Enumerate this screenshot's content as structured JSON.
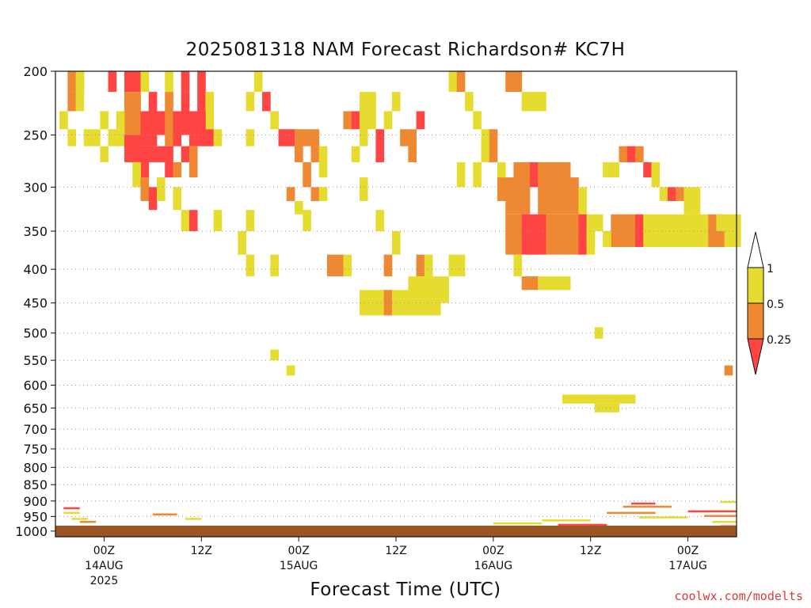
{
  "title": "2025081318 NAM Forecast Richardson# KC7H",
  "x_axis_title": "Forecast Time (UTC)",
  "watermark": "coolwx.com/modelts",
  "colors": {
    "lt_0_25": "#ff4444",
    "0_25_to_0_5": "#ee8833",
    "0_5_to_1": "#e6dc30",
    "ground": "#9b5523",
    "gridline": "#999999"
  },
  "colorbar": {
    "labels": [
      "1",
      "0.5",
      "0.25"
    ]
  },
  "chart_data": {
    "type": "heatmap",
    "title": "2025081318 NAM Forecast Richardson# KC7H",
    "xlabel": "Forecast Time (UTC)",
    "ylabel": "",
    "x_unit": "forecast hour from 2025-08-13 18Z",
    "x_range": [
      0,
      84
    ],
    "y_scale": "log-pressure",
    "y_range_hPa": [
      1020,
      200
    ],
    "grid": "dotted horizontal lines at labeled pressure levels",
    "y_ticks": [
      200,
      250,
      300,
      350,
      400,
      450,
      500,
      550,
      600,
      650,
      700,
      750,
      800,
      850,
      900,
      950,
      1000
    ],
    "x_ticks": [
      {
        "hour": 6,
        "label": "00Z",
        "date": "14AUG",
        "year": "2025"
      },
      {
        "hour": 18,
        "label": "12Z",
        "date": "",
        "year": ""
      },
      {
        "hour": 30,
        "label": "00Z",
        "date": "15AUG",
        "year": ""
      },
      {
        "hour": 42,
        "label": "12Z",
        "date": "",
        "year": ""
      },
      {
        "hour": 54,
        "label": "00Z",
        "date": "16AUG",
        "year": ""
      },
      {
        "hour": 66,
        "label": "12Z",
        "date": "",
        "year": ""
      },
      {
        "hour": 78,
        "label": "00Z",
        "date": "17AUG",
        "year": ""
      }
    ],
    "legend": {
      "position": "right",
      "boundaries": [
        "1",
        "0.5",
        "0.25"
      ],
      "classes": [
        {
          "range": "0.5-1",
          "color": "#e6dc30"
        },
        {
          "range": "0.25-0.5",
          "color": "#ee8833"
        },
        {
          "range": "<0.25",
          "color": "#ff4444"
        }
      ]
    },
    "cell_class_legend": {
      "1": "0.5-1",
      "2": "0.25-0.5",
      "3": "<0.25"
    },
    "cells": [
      [
        2,
        200,
        215,
        2
      ],
      [
        3,
        200,
        215,
        2
      ],
      [
        2,
        215,
        230,
        2
      ],
      [
        3,
        200,
        230,
        1
      ],
      [
        7,
        200,
        215,
        3
      ],
      [
        9,
        200,
        215,
        3
      ],
      [
        10,
        200,
        215,
        3
      ],
      [
        11,
        200,
        215,
        1
      ],
      [
        14,
        200,
        215,
        1
      ],
      [
        16,
        200,
        215,
        3
      ],
      [
        18,
        200,
        230,
        3
      ],
      [
        19,
        215,
        245,
        1
      ],
      [
        9,
        215,
        250,
        2
      ],
      [
        10,
        215,
        250,
        2
      ],
      [
        11,
        230,
        260,
        3
      ],
      [
        12,
        215,
        260,
        3
      ],
      [
        13,
        230,
        250,
        3
      ],
      [
        14,
        215,
        260,
        2
      ],
      [
        15,
        230,
        260,
        3
      ],
      [
        16,
        215,
        250,
        3
      ],
      [
        17,
        230,
        260,
        3
      ],
      [
        18,
        230,
        260,
        3
      ],
      [
        19,
        245,
        260,
        3
      ],
      [
        6,
        230,
        245,
        1
      ],
      [
        8,
        245,
        260,
        1
      ],
      [
        9,
        250,
        275,
        3
      ],
      [
        10,
        250,
        275,
        3
      ],
      [
        11,
        260,
        290,
        3
      ],
      [
        12,
        260,
        275,
        3
      ],
      [
        13,
        260,
        275,
        3
      ],
      [
        14,
        260,
        290,
        3
      ],
      [
        15,
        275,
        290,
        2
      ],
      [
        16,
        260,
        275,
        3
      ],
      [
        17,
        260,
        290,
        2
      ],
      [
        1,
        230,
        245,
        1
      ],
      [
        2,
        245,
        260,
        1
      ],
      [
        4,
        245,
        260,
        1
      ],
      [
        5,
        245,
        260,
        1
      ],
      [
        7,
        245,
        260,
        1
      ],
      [
        8,
        230,
        245,
        1
      ],
      [
        6,
        260,
        275,
        1
      ],
      [
        20,
        245,
        260,
        1
      ],
      [
        24,
        245,
        260,
        1
      ],
      [
        10,
        275,
        300,
        1
      ],
      [
        11,
        290,
        315,
        2
      ],
      [
        12,
        300,
        325,
        3
      ],
      [
        13,
        290,
        315,
        1
      ],
      [
        15,
        300,
        325,
        1
      ],
      [
        16,
        325,
        350,
        1
      ],
      [
        17,
        325,
        350,
        3
      ],
      [
        20,
        325,
        350,
        1
      ],
      [
        24,
        325,
        350,
        1
      ],
      [
        23,
        350,
        380,
        1
      ],
      [
        24,
        215,
        230,
        1
      ],
      [
        25,
        200,
        215,
        1
      ],
      [
        26,
        215,
        230,
        3
      ],
      [
        27,
        230,
        245,
        1
      ],
      [
        28,
        245,
        260,
        3
      ],
      [
        29,
        245,
        260,
        3
      ],
      [
        30,
        245,
        275,
        2
      ],
      [
        31,
        245,
        260,
        2
      ],
      [
        32,
        245,
        275,
        2
      ],
      [
        33,
        260,
        290,
        1
      ],
      [
        31,
        275,
        300,
        2
      ],
      [
        29,
        300,
        315,
        2
      ],
      [
        30,
        315,
        330,
        1
      ],
      [
        31,
        325,
        350,
        1
      ],
      [
        32,
        300,
        315,
        2
      ],
      [
        33,
        300,
        315,
        1
      ],
      [
        24,
        380,
        410,
        1
      ],
      [
        27,
        380,
        410,
        1
      ],
      [
        34,
        380,
        410,
        2
      ],
      [
        35,
        380,
        410,
        2
      ],
      [
        36,
        380,
        410,
        1
      ],
      [
        36,
        230,
        245,
        2
      ],
      [
        37,
        230,
        245,
        3
      ],
      [
        38,
        215,
        260,
        1
      ],
      [
        39,
        215,
        245,
        1
      ],
      [
        40,
        245,
        275,
        3
      ],
      [
        41,
        230,
        245,
        1
      ],
      [
        42,
        215,
        230,
        1
      ],
      [
        43,
        245,
        260,
        2
      ],
      [
        44,
        245,
        275,
        2
      ],
      [
        45,
        230,
        245,
        3
      ],
      [
        37,
        260,
        275,
        1
      ],
      [
        38,
        290,
        315,
        1
      ],
      [
        40,
        325,
        350,
        1
      ],
      [
        42,
        350,
        380,
        1
      ],
      [
        41,
        380,
        410,
        2
      ],
      [
        45,
        380,
        410,
        2
      ],
      [
        46,
        380,
        410,
        1
      ],
      [
        49,
        380,
        410,
        1
      ],
      [
        50,
        380,
        410,
        1
      ],
      [
        38,
        430,
        470,
        1
      ],
      [
        39,
        430,
        470,
        1
      ],
      [
        40,
        430,
        470,
        1
      ],
      [
        41,
        430,
        470,
        2
      ],
      [
        42,
        430,
        470,
        1
      ],
      [
        43,
        430,
        470,
        1
      ],
      [
        44,
        410,
        470,
        1
      ],
      [
        45,
        410,
        470,
        1
      ],
      [
        46,
        410,
        470,
        1
      ],
      [
        47,
        410,
        470,
        1
      ],
      [
        48,
        410,
        450,
        1
      ],
      [
        49,
        200,
        215,
        1
      ],
      [
        50,
        200,
        215,
        2
      ],
      [
        51,
        215,
        230,
        1
      ],
      [
        52,
        230,
        245,
        1
      ],
      [
        53,
        245,
        275,
        1
      ],
      [
        54,
        245,
        275,
        2
      ],
      [
        55,
        275,
        290,
        1
      ],
      [
        50,
        275,
        300,
        1
      ],
      [
        52,
        275,
        300,
        1
      ],
      [
        55,
        290,
        315,
        2
      ],
      [
        56,
        290,
        330,
        2
      ],
      [
        57,
        275,
        330,
        2
      ],
      [
        58,
        275,
        330,
        2
      ],
      [
        59,
        275,
        300,
        3
      ],
      [
        60,
        275,
        330,
        2
      ],
      [
        61,
        275,
        330,
        2
      ],
      [
        62,
        275,
        330,
        2
      ],
      [
        63,
        275,
        330,
        2
      ],
      [
        64,
        290,
        330,
        2
      ],
      [
        65,
        300,
        330,
        1
      ],
      [
        56,
        330,
        380,
        2
      ],
      [
        57,
        330,
        380,
        2
      ],
      [
        58,
        330,
        380,
        3
      ],
      [
        59,
        330,
        380,
        3
      ],
      [
        60,
        330,
        380,
        3
      ],
      [
        61,
        330,
        380,
        2
      ],
      [
        62,
        330,
        380,
        2
      ],
      [
        63,
        330,
        380,
        2
      ],
      [
        64,
        330,
        380,
        2
      ],
      [
        65,
        330,
        380,
        3
      ],
      [
        66,
        330,
        380,
        1
      ],
      [
        57,
        380,
        410,
        1
      ],
      [
        58,
        410,
        430,
        2
      ],
      [
        59,
        410,
        430,
        2
      ],
      [
        60,
        410,
        430,
        1
      ],
      [
        61,
        410,
        430,
        1
      ],
      [
        62,
        410,
        430,
        1
      ],
      [
        63,
        410,
        430,
        1
      ],
      [
        56,
        200,
        215,
        2
      ],
      [
        57,
        200,
        215,
        2
      ],
      [
        58,
        215,
        230,
        1
      ],
      [
        59,
        215,
        230,
        1
      ],
      [
        60,
        215,
        230,
        1
      ],
      [
        68,
        275,
        290,
        1
      ],
      [
        69,
        275,
        290,
        1
      ],
      [
        70,
        260,
        275,
        2
      ],
      [
        71,
        260,
        275,
        3
      ],
      [
        72,
        260,
        275,
        2
      ],
      [
        73,
        275,
        290,
        3
      ],
      [
        74,
        275,
        300,
        1
      ],
      [
        75,
        300,
        315,
        1
      ],
      [
        76,
        300,
        315,
        3
      ],
      [
        77,
        300,
        315,
        2
      ],
      [
        78,
        300,
        330,
        1
      ],
      [
        79,
        300,
        330,
        1
      ],
      [
        69,
        330,
        370,
        2
      ],
      [
        70,
        330,
        370,
        2
      ],
      [
        71,
        330,
        370,
        2
      ],
      [
        72,
        330,
        370,
        3
      ],
      [
        73,
        330,
        370,
        1
      ],
      [
        74,
        330,
        370,
        1
      ],
      [
        75,
        330,
        370,
        1
      ],
      [
        76,
        330,
        370,
        1
      ],
      [
        77,
        330,
        370,
        1
      ],
      [
        78,
        330,
        370,
        1
      ],
      [
        79,
        330,
        370,
        1
      ],
      [
        80,
        330,
        370,
        1
      ],
      [
        81,
        330,
        370,
        2
      ],
      [
        82,
        330,
        370,
        2
      ],
      [
        83,
        330,
        370,
        1
      ],
      [
        84,
        330,
        370,
        1
      ],
      [
        67,
        330,
        350,
        1
      ],
      [
        66,
        350,
        370,
        1
      ],
      [
        68,
        350,
        370,
        1
      ],
      [
        82,
        330,
        350,
        1
      ],
      [
        63,
        620,
        640,
        1
      ],
      [
        64,
        620,
        640,
        1
      ],
      [
        65,
        620,
        640,
        1
      ],
      [
        66,
        620,
        640,
        1
      ],
      [
        67,
        620,
        640,
        1
      ],
      [
        68,
        620,
        640,
        1
      ],
      [
        69,
        620,
        640,
        1
      ],
      [
        70,
        620,
        640,
        1
      ],
      [
        71,
        620,
        640,
        1
      ],
      [
        67,
        640,
        660,
        1
      ],
      [
        68,
        640,
        660,
        1
      ],
      [
        69,
        640,
        660,
        1
      ],
      [
        67,
        490,
        510,
        1
      ],
      [
        83,
        560,
        580,
        2
      ],
      [
        27,
        530,
        550,
        1
      ],
      [
        29,
        560,
        580,
        1
      ]
    ],
    "boundary_layer_notes": "Scattered thin bands of values <1 between about 880 and 1000 hPa, densest after 16AUG 00Z; brown band at bottom is terrain/ground."
  }
}
